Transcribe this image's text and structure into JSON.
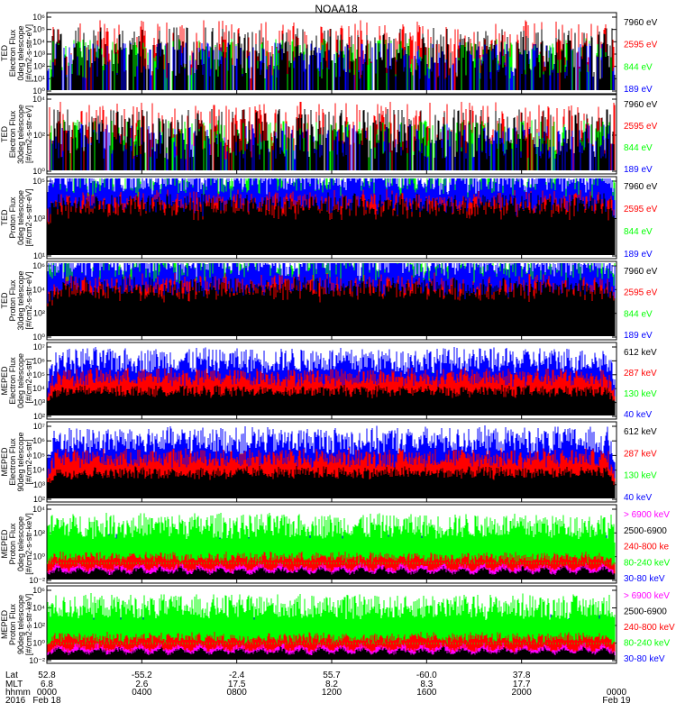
{
  "title": "NOAA18",
  "colors": {
    "black": "#000000",
    "red": "#ff0000",
    "green": "#00ff00",
    "blue": "#0000ff",
    "magenta": "#ff00ff"
  },
  "chart_data": [
    {
      "type": "line",
      "ylabel": [
        "TED",
        "Electron Flux",
        "0deg telescope",
        "[#/cm2-s-str-eV]"
      ],
      "yticks": [
        "10⁰",
        "10¹",
        "10²",
        "10³",
        "10⁴",
        "10⁵",
        "10⁶"
      ],
      "series": [
        {
          "name": "7960 eV",
          "color": "#000000"
        },
        {
          "name": "2595 eV",
          "color": "#ff0000"
        },
        {
          "name": "844 eV",
          "color": "#00ff00"
        },
        {
          "name": "189 eV",
          "color": "#0000ff"
        }
      ]
    },
    {
      "type": "line",
      "ylabel": [
        "TED",
        "Electron Flux",
        "30deg telescope",
        "[#/cm2-s-str-eV]"
      ],
      "yticks": [
        "10⁰",
        "10²",
        "10⁴"
      ],
      "series": [
        {
          "name": "7960 eV",
          "color": "#000000"
        },
        {
          "name": "2595 eV",
          "color": "#ff0000"
        },
        {
          "name": "844 eV",
          "color": "#00ff00"
        },
        {
          "name": "189 eV",
          "color": "#0000ff"
        }
      ]
    },
    {
      "type": "line",
      "ylabel": [
        "TED",
        "Proton Flux",
        "0deg telescope",
        "[#/cm2-s-str-eV]"
      ],
      "yticks": [
        "10¹",
        "10³",
        "10⁵"
      ],
      "series": [
        {
          "name": "7960 eV",
          "color": "#000000"
        },
        {
          "name": "2595 eV",
          "color": "#ff0000"
        },
        {
          "name": "844 eV",
          "color": "#00ff00"
        },
        {
          "name": "189 eV",
          "color": "#0000ff"
        }
      ]
    },
    {
      "type": "line",
      "ylabel": [
        "TED",
        "Proton Flux",
        "30deg telescope",
        "[#/cm2-s-str-eV]"
      ],
      "yticks": [
        "10⁰",
        "10²",
        "10⁴",
        "10⁶"
      ],
      "series": [
        {
          "name": "7960 eV",
          "color": "#000000"
        },
        {
          "name": "2595 eV",
          "color": "#ff0000"
        },
        {
          "name": "844 eV",
          "color": "#00ff00"
        },
        {
          "name": "189 eV",
          "color": "#0000ff"
        }
      ]
    },
    {
      "type": "line",
      "ylabel": [
        "MEPED",
        "Electron Flux",
        "0deg telescope",
        "[#/cm2-s-str]"
      ],
      "yticks": [
        "10²",
        "10³",
        "10⁴",
        "10⁵",
        "10⁶",
        "10⁷"
      ],
      "series": [
        {
          "name": "612 keV",
          "color": "#000000"
        },
        {
          "name": "287 keV",
          "color": "#ff0000"
        },
        {
          "name": "130 keV",
          "color": "#00ff00"
        },
        {
          "name": "40 keV",
          "color": "#0000ff"
        }
      ]
    },
    {
      "type": "line",
      "ylabel": [
        "MEPED",
        "Electron Flux",
        "90deg telescope",
        "[#/cm2-s-str]"
      ],
      "yticks": [
        "10²",
        "10³",
        "10⁴",
        "10⁵",
        "10⁶",
        "10⁷"
      ],
      "series": [
        {
          "name": "612 keV",
          "color": "#000000"
        },
        {
          "name": "287 keV",
          "color": "#ff0000"
        },
        {
          "name": "130 keV",
          "color": "#00ff00"
        },
        {
          "name": "40 keV",
          "color": "#0000ff"
        }
      ]
    },
    {
      "type": "line",
      "ylabel": [
        "MEPED",
        "Proton Flux",
        "0deg telescope",
        "[#/cm2-s-str-keV]"
      ],
      "yticks": [
        "10⁻²",
        "10⁰",
        "10²",
        "10⁴"
      ],
      "series": [
        {
          "name": "> 6900 keV",
          "color": "#ff00ff"
        },
        {
          "name": "2500-6900",
          "color": "#000000"
        },
        {
          "name": "240-800 ke",
          "color": "#ff0000"
        },
        {
          "name": "80-240 keV",
          "color": "#00ff00"
        },
        {
          "name": "30-80 keV",
          "color": "#0000ff"
        }
      ]
    },
    {
      "type": "line",
      "ylabel": [
        "MEPED",
        "Proton Flux",
        "90deg telescope",
        "[#/cm2-s-str-keV]"
      ],
      "yticks": [
        "10⁻²",
        "10⁰",
        "10²",
        "10⁴",
        "10⁶"
      ],
      "series": [
        {
          "name": "> 6900 keV",
          "color": "#ff00ff"
        },
        {
          "name": "2500-6900",
          "color": "#000000"
        },
        {
          "name": "240-800 keV",
          "color": "#ff0000"
        },
        {
          "name": "80-240 keV",
          "color": "#00ff00"
        },
        {
          "name": "30-80 keV",
          "color": "#0000ff"
        }
      ]
    }
  ],
  "xaxis": {
    "row_labels": [
      "Lat",
      "MLT",
      "hhmm",
      "2016"
    ],
    "columns": [
      {
        "lat": "52.8",
        "mlt": "6.8",
        "hhmm": "0000",
        "date": "Feb 18"
      },
      {
        "lat": "-55.2",
        "mlt": "2.6",
        "hhmm": "0400",
        "date": ""
      },
      {
        "lat": "-2.4",
        "mlt": "17.5",
        "hhmm": "0800",
        "date": ""
      },
      {
        "lat": "55.7",
        "mlt": "8.2",
        "hhmm": "1200",
        "date": ""
      },
      {
        "lat": "-60.0",
        "mlt": "8.3",
        "hhmm": "1600",
        "date": ""
      },
      {
        "lat": "37.8",
        "mlt": "17.7",
        "hhmm": "2000",
        "date": ""
      },
      {
        "lat": "",
        "mlt": "",
        "hhmm": "0000",
        "date": "Feb 19"
      }
    ]
  }
}
